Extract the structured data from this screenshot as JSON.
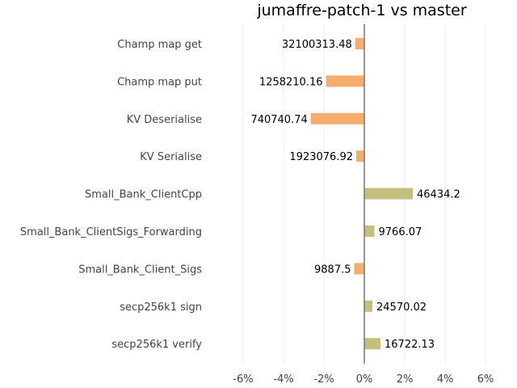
{
  "chart_data": {
    "type": "bar",
    "orientation": "horizontal",
    "title": "jumaffre-patch-1 vs master",
    "xlabel": "",
    "ylabel": "",
    "xlim": [
      -6.5,
      6.0
    ],
    "grid": true,
    "categories": [
      "Champ map get",
      "Champ map put",
      "KV Deserialise",
      "KV Serialise",
      "Small_Bank_ClientCpp",
      "Small_Bank_ClientSigs_Forwarding",
      "Small_Bank_Client_Sigs",
      "secp256k1 sign",
      "secp256k1 verify"
    ],
    "values": [
      -0.45,
      -1.9,
      -2.65,
      -0.4,
      2.4,
      0.5,
      -0.5,
      0.4,
      0.8
    ],
    "value_labels": [
      "32100313.48",
      "1258210.16",
      "740740.74",
      "1923076.92",
      "46434.2",
      "9766.07",
      "9887.5",
      "24570.02",
      "16722.13"
    ],
    "ticks": [
      -6,
      -4,
      -2,
      0,
      2,
      4,
      6
    ],
    "tick_labels": [
      "-6%",
      "-4%",
      "-2%",
      "0%",
      "2%",
      "4%",
      "6%"
    ],
    "colors": {
      "negative": "#f5ad6b",
      "positive": "#c4bf7c",
      "zero_line": "#777777",
      "grid": "#ececec"
    }
  }
}
